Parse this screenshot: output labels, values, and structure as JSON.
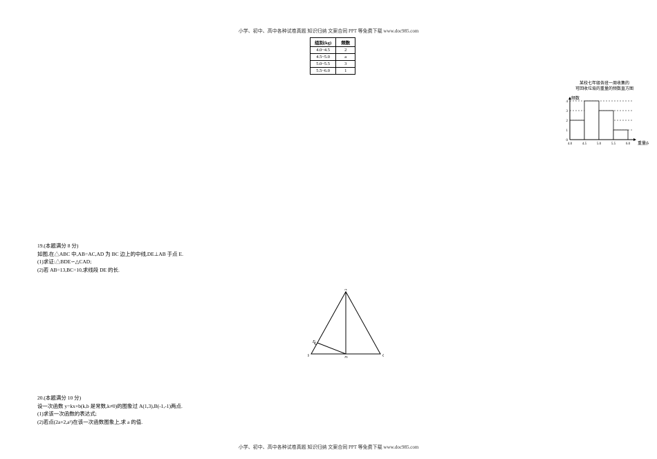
{
  "header": "小学、初中、高中各种试卷真题 知识归纳 文案合同 PPT 等免费下载   www.doc985.com",
  "footer": "小学、初中、高中各种试卷真题 知识归纳 文案合同 PPT 等免费下载   www.doc985.com",
  "freq_table": {
    "col1_header": "组别(kg)",
    "col2_header": "频数",
    "rows": [
      {
        "range": "4.0~4.5",
        "freq": "2"
      },
      {
        "range": "4.5~5.0",
        "freq": "a"
      },
      {
        "range": "5.0~5.5",
        "freq": "3"
      },
      {
        "range": "5.5~6.0",
        "freq": "1"
      }
    ],
    "border_color": "#000000",
    "text_fontsize": 6.5
  },
  "histogram": {
    "title_line1": "某校七年级各班一周收集的",
    "title_line2": "可回收垃圾的重量的频数直方图",
    "y_label": "频数",
    "x_label": "重量(kg)",
    "x_ticks": [
      "4.0",
      "4.5",
      "5.0",
      "5.5",
      "6.0"
    ],
    "y_max": 4,
    "y_ticks": [
      0,
      1,
      2,
      3,
      4
    ],
    "bars": [
      {
        "x_start": 4.0,
        "x_end": 4.5,
        "height": 2
      },
      {
        "x_start": 4.5,
        "x_end": 5.0,
        "height": 4
      },
      {
        "x_start": 5.0,
        "x_end": 5.5,
        "height": 3
      },
      {
        "x_start": 5.5,
        "x_end": 6.0,
        "height": 1
      }
    ],
    "bar_fill": "#ffffff",
    "bar_stroke": "#000000",
    "grid_dash": "2,2",
    "grid_color": "#000000",
    "axis_color": "#000000",
    "label_fontsize": 6,
    "tick_fontsize": 5
  },
  "problem19": {
    "heading": "19.(本题满分 8 分)",
    "line1": "如图,在△ABC 中,AB=AC,AD 为 BC 边上的中线,DE⊥AB 于点 E.",
    "line2": "(1)求证:△BDE∽△CAD;",
    "line3": "(2)若 AB=13,BC=10,求线段 DE 的长."
  },
  "triangle_figure": {
    "labels": {
      "A": "A",
      "B": "B",
      "C": "C",
      "D": "D",
      "E": "E"
    },
    "stroke": "#000000",
    "fill": "none",
    "label_fontsize": 6,
    "points": {
      "A": [
        50,
        0
      ],
      "B": [
        0,
        90
      ],
      "C": [
        100,
        90
      ],
      "D": [
        50,
        90
      ],
      "E": [
        9,
        74
      ]
    }
  },
  "problem20": {
    "heading": "20.(本题满分 10 分)",
    "line1": "设一次函数 y=kx+b(k,b 是常数,k≠0)的图象过 A(1,3),B(-1,-1)两点.",
    "line2": "(1)求该一次函数的表达式;",
    "line3": "(2)若点(2a+2,a²)在该一次函数图象上,求 a 的值."
  }
}
